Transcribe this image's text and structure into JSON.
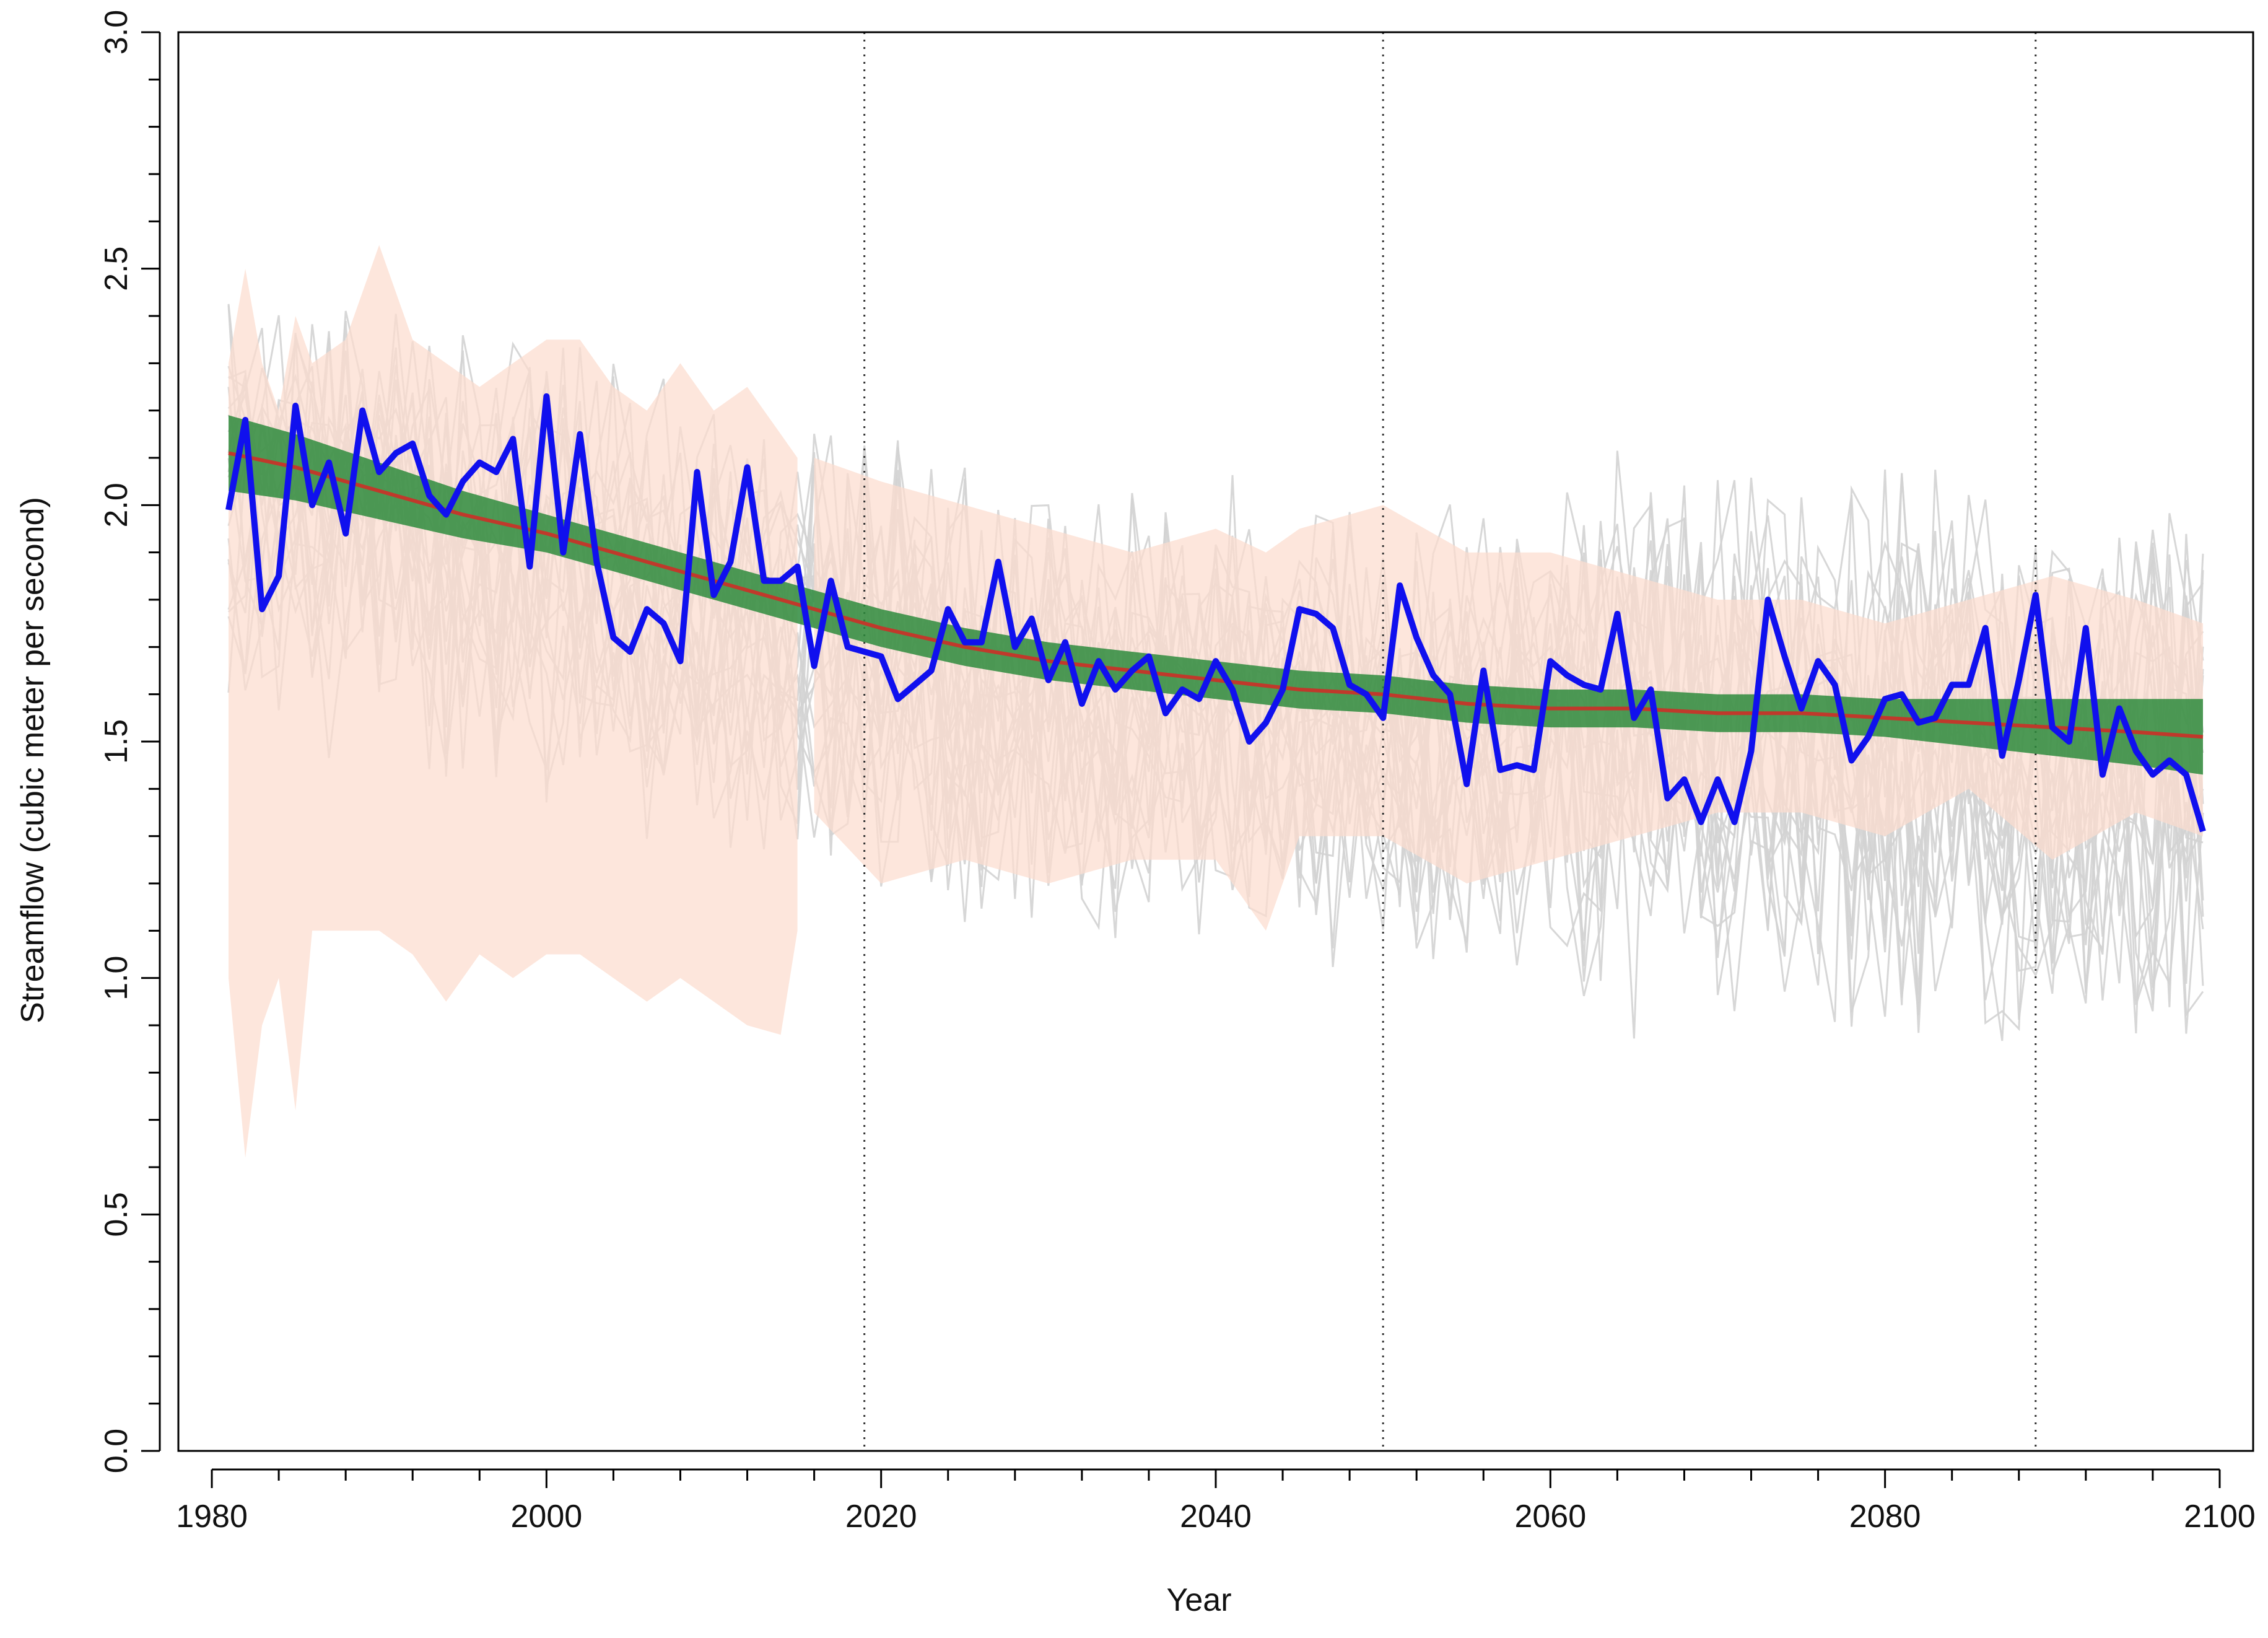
{
  "chart_data": {
    "type": "line",
    "xlabel": "Year",
    "ylabel": "Streamflow (cubic meter per second)",
    "xlim": [
      1978,
      2102
    ],
    "ylim": [
      0.0,
      3.0
    ],
    "x_ticks": [
      1980,
      2000,
      2020,
      2040,
      2060,
      2080,
      2100
    ],
    "x_tick_labels": [
      "1980",
      "2000",
      "2020",
      "2040",
      "2060",
      "2080",
      "2100"
    ],
    "y_ticks": [
      0.0,
      0.5,
      1.0,
      1.5,
      2.0,
      2.5,
      3.0
    ],
    "y_tick_labels": [
      "0.0",
      "0.5",
      "1.0",
      "1.5",
      "2.0",
      "2.5",
      "3.0"
    ],
    "vertical_reference_lines": [
      2019,
      2050,
      2089
    ],
    "grid": false,
    "legend": "none",
    "colors": {
      "ensemble_lines": "#d3d3d3",
      "band": "#fcdcce",
      "smooth_band": "#2e8b3d",
      "smooth_line": "#c0392b",
      "observed": "#1010ee",
      "reference_lines": "#333333"
    },
    "observed_series": {
      "x": [
        1981,
        1982,
        1983,
        1984,
        1985,
        1986,
        1987,
        1988,
        1989,
        1990,
        1991,
        1992,
        1993,
        1994,
        1995,
        1996,
        1997,
        1998,
        1999,
        2000,
        2001,
        2002,
        2003,
        2004,
        2005,
        2006,
        2007,
        2008,
        2009,
        2010,
        2011,
        2012,
        2013,
        2014,
        2015,
        2016,
        2017,
        2018,
        2019,
        2020,
        2021,
        2022,
        2023,
        2024,
        2025,
        2026,
        2027,
        2028,
        2029,
        2030,
        2031,
        2032,
        2033,
        2034,
        2035,
        2036,
        2037,
        2038,
        2039,
        2040,
        2041,
        2042,
        2043,
        2044,
        2045,
        2046,
        2047,
        2048,
        2049,
        2050,
        2051,
        2052,
        2053,
        2054,
        2055,
        2056,
        2057,
        2058,
        2059,
        2060,
        2061,
        2062,
        2063,
        2064,
        2065,
        2066,
        2067,
        2068,
        2069,
        2070,
        2071,
        2072,
        2073,
        2074,
        2075,
        2076,
        2077,
        2078,
        2079,
        2080,
        2081,
        2082,
        2083,
        2084,
        2085,
        2086,
        2087,
        2088,
        2089,
        2090,
        2091,
        2092,
        2093,
        2094,
        2095,
        2096,
        2097,
        2098,
        2099
      ],
      "y": [
        1.99,
        2.18,
        1.78,
        1.85,
        2.21,
        2.0,
        2.09,
        1.94,
        2.2,
        2.07,
        2.11,
        2.13,
        2.02,
        1.98,
        2.05,
        2.09,
        2.07,
        2.14,
        1.87,
        2.23,
        1.9,
        2.15,
        1.88,
        1.72,
        1.69,
        1.78,
        1.75,
        1.67,
        2.07,
        1.81,
        1.88,
        2.08,
        1.84,
        1.84,
        1.87,
        1.66,
        1.84,
        1.7,
        1.69,
        1.68,
        1.59,
        1.62,
        1.65,
        1.78,
        1.71,
        1.71,
        1.88,
        1.7,
        1.76,
        1.63,
        1.71,
        1.58,
        1.67,
        1.61,
        1.65,
        1.68,
        1.56,
        1.61,
        1.59,
        1.67,
        1.61,
        1.5,
        1.54,
        1.61,
        1.78,
        1.77,
        1.74,
        1.62,
        1.6,
        1.55,
        1.83,
        1.72,
        1.64,
        1.6,
        1.41,
        1.65,
        1.44,
        1.45,
        1.44,
        1.67,
        1.64,
        1.62,
        1.61,
        1.77,
        1.55,
        1.61,
        1.38,
        1.42,
        1.33,
        1.42,
        1.33,
        1.48,
        1.8,
        1.68,
        1.57,
        1.67,
        1.62,
        1.46,
        1.51,
        1.59,
        1.6,
        1.54,
        1.55,
        1.62,
        1.62,
        1.74,
        1.47,
        1.63,
        1.81,
        1.53,
        1.5,
        1.74,
        1.43,
        1.57,
        1.48,
        1.43,
        1.46,
        1.43,
        1.31
      ]
    },
    "smoothed_trend": {
      "x": [
        1981,
        1985,
        1990,
        1995,
        2000,
        2005,
        2010,
        2015,
        2020,
        2025,
        2030,
        2035,
        2040,
        2045,
        2050,
        2055,
        2060,
        2065,
        2070,
        2075,
        2080,
        2085,
        2090,
        2095,
        2099
      ],
      "y": [
        2.11,
        2.08,
        2.03,
        1.98,
        1.94,
        1.89,
        1.84,
        1.79,
        1.74,
        1.7,
        1.67,
        1.65,
        1.63,
        1.61,
        1.6,
        1.58,
        1.57,
        1.57,
        1.56,
        1.56,
        1.55,
        1.54,
        1.53,
        1.52,
        1.51
      ],
      "band_half_width": [
        0.08,
        0.07,
        0.06,
        0.05,
        0.04,
        0.04,
        0.04,
        0.04,
        0.04,
        0.04,
        0.04,
        0.04,
        0.04,
        0.04,
        0.04,
        0.04,
        0.04,
        0.04,
        0.04,
        0.04,
        0.04,
        0.05,
        0.06,
        0.07,
        0.08
      ]
    },
    "historical_band": {
      "x": [
        1981,
        1982,
        1983,
        1984,
        1985,
        1986,
        1988,
        1990,
        1992,
        1994,
        1996,
        1998,
        2000,
        2002,
        2004,
        2006,
        2008,
        2010,
        2012,
        2014,
        2015
      ],
      "lower": [
        1.0,
        0.62,
        0.9,
        1.0,
        0.72,
        1.1,
        1.1,
        1.1,
        1.05,
        0.95,
        1.05,
        1.0,
        1.05,
        1.05,
        1.0,
        0.95,
        1.0,
        0.95,
        0.9,
        0.88,
        1.1
      ],
      "upper": [
        2.3,
        2.5,
        2.3,
        2.2,
        2.4,
        2.3,
        2.35,
        2.55,
        2.35,
        2.3,
        2.25,
        2.3,
        2.35,
        2.35,
        2.25,
        2.2,
        2.3,
        2.2,
        2.25,
        2.15,
        2.1
      ]
    },
    "future_band": {
      "x": [
        2016,
        2020,
        2025,
        2030,
        2035,
        2040,
        2043,
        2045,
        2050,
        2055,
        2060,
        2065,
        2070,
        2075,
        2080,
        2085,
        2090,
        2095,
        2099
      ],
      "lower": [
        1.35,
        1.2,
        1.25,
        1.2,
        1.25,
        1.25,
        1.1,
        1.3,
        1.3,
        1.2,
        1.25,
        1.3,
        1.35,
        1.35,
        1.3,
        1.4,
        1.25,
        1.35,
        1.3
      ],
      "upper": [
        2.1,
        2.05,
        2.0,
        1.95,
        1.9,
        1.95,
        1.9,
        1.95,
        2.0,
        1.9,
        1.9,
        1.85,
        1.8,
        1.8,
        1.75,
        1.8,
        1.85,
        1.8,
        1.75
      ]
    }
  }
}
